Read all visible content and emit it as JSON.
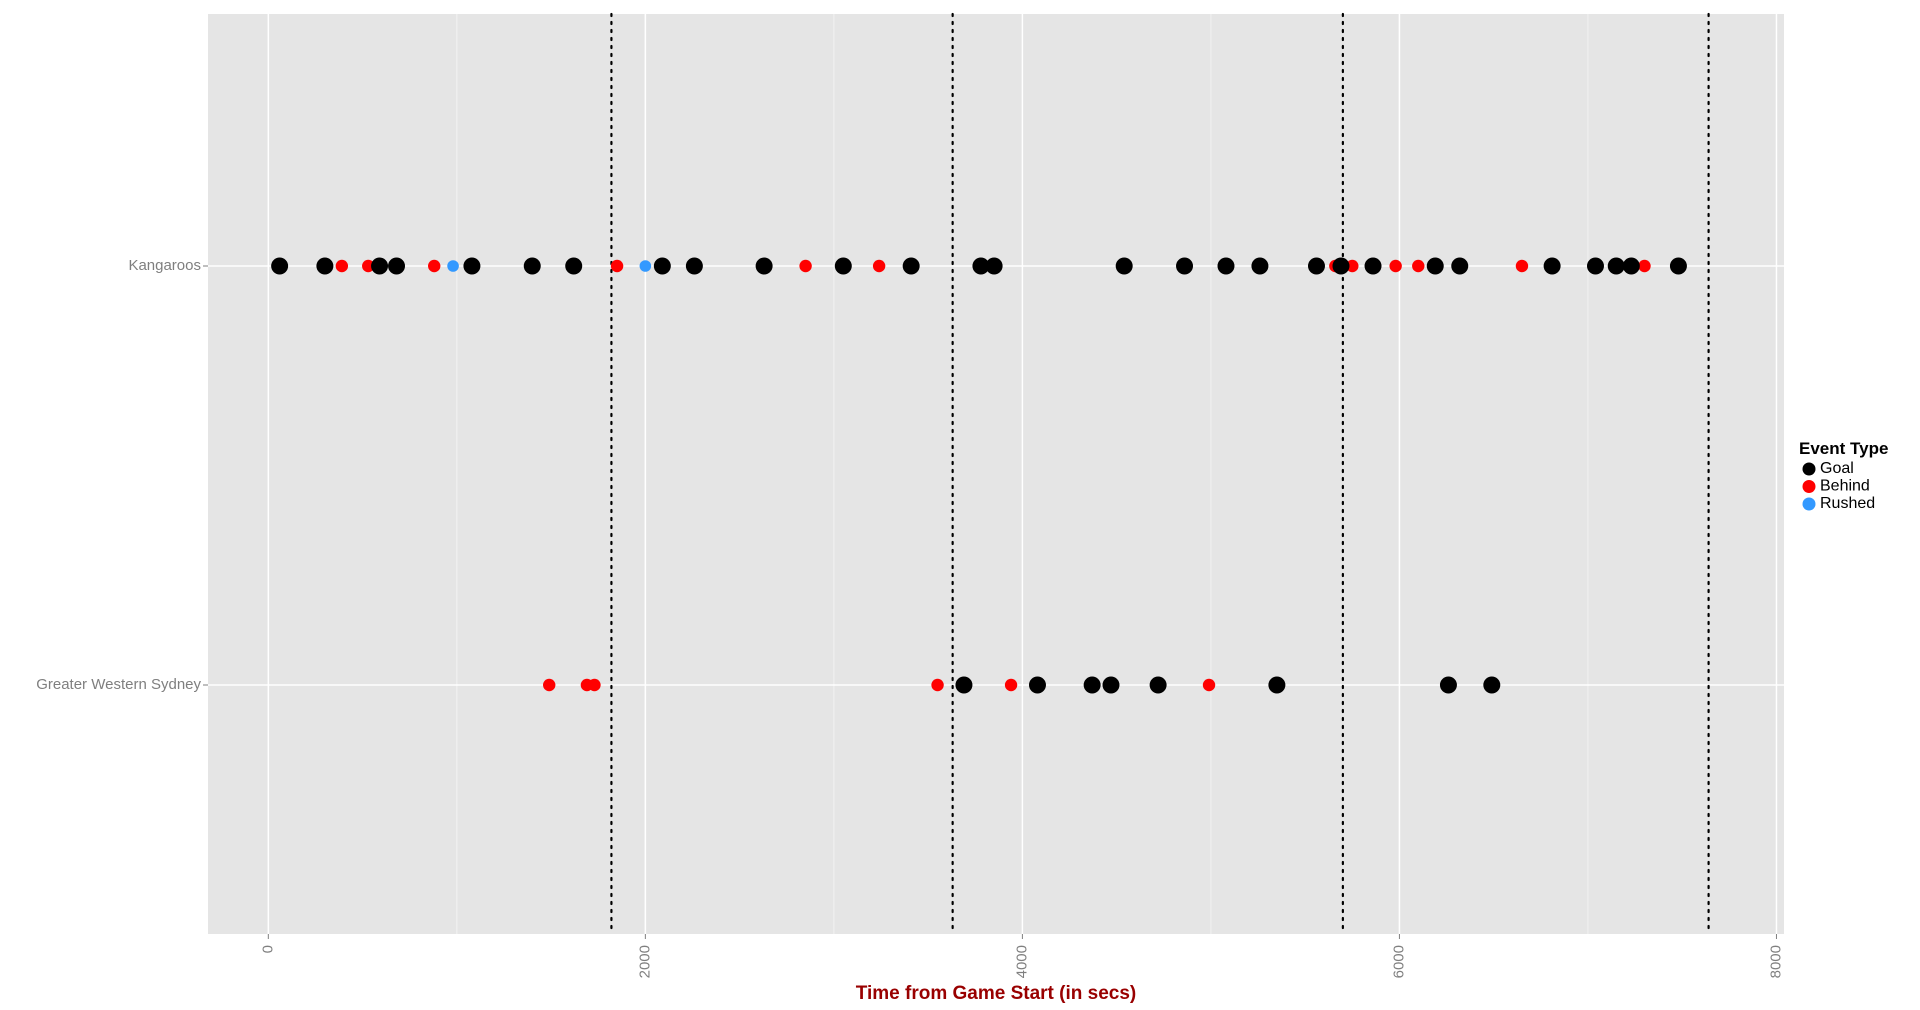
{
  "chart_data": {
    "type": "scatter",
    "title": "",
    "xlabel": "Time from Game Start (in secs)",
    "ylabel": "",
    "xlim": [
      -320,
      8040
    ],
    "x_ticks": [
      0,
      2000,
      4000,
      6000,
      8000
    ],
    "categories": [
      "Kangaroos",
      "Greater Western Sydney"
    ],
    "grid": true,
    "legend": {
      "title": "Event Type",
      "position": "right"
    },
    "quarter_lines": [
      1820,
      3630,
      5700,
      7640
    ],
    "series": [
      {
        "name": "Goal",
        "color": "#000000",
        "points": [
          {
            "team": "Kangaroos",
            "x": 60
          },
          {
            "team": "Kangaroos",
            "x": 300
          },
          {
            "team": "Kangaroos",
            "x": 590
          },
          {
            "team": "Kangaroos",
            "x": 680
          },
          {
            "team": "Kangaroos",
            "x": 1080
          },
          {
            "team": "Kangaroos",
            "x": 1400
          },
          {
            "team": "Kangaroos",
            "x": 1620
          },
          {
            "team": "Kangaroos",
            "x": 2090
          },
          {
            "team": "Kangaroos",
            "x": 2260
          },
          {
            "team": "Kangaroos",
            "x": 2630
          },
          {
            "team": "Kangaroos",
            "x": 3050
          },
          {
            "team": "Kangaroos",
            "x": 3410
          },
          {
            "team": "Kangaroos",
            "x": 3780
          },
          {
            "team": "Kangaroos",
            "x": 3850
          },
          {
            "team": "Kangaroos",
            "x": 4540
          },
          {
            "team": "Kangaroos",
            "x": 4860
          },
          {
            "team": "Kangaroos",
            "x": 5080
          },
          {
            "team": "Kangaroos",
            "x": 5260
          },
          {
            "team": "Kangaroos",
            "x": 5560
          },
          {
            "team": "Kangaroos",
            "x": 5690
          },
          {
            "team": "Kangaroos",
            "x": 5860
          },
          {
            "team": "Kangaroos",
            "x": 6190
          },
          {
            "team": "Kangaroos",
            "x": 6320
          },
          {
            "team": "Kangaroos",
            "x": 6810
          },
          {
            "team": "Kangaroos",
            "x": 7040
          },
          {
            "team": "Kangaroos",
            "x": 7150
          },
          {
            "team": "Kangaroos",
            "x": 7230
          },
          {
            "team": "Kangaroos",
            "x": 7480
          },
          {
            "team": "Greater Western Sydney",
            "x": 3690
          },
          {
            "team": "Greater Western Sydney",
            "x": 4080
          },
          {
            "team": "Greater Western Sydney",
            "x": 4370
          },
          {
            "team": "Greater Western Sydney",
            "x": 4470
          },
          {
            "team": "Greater Western Sydney",
            "x": 4720
          },
          {
            "team": "Greater Western Sydney",
            "x": 5350
          },
          {
            "team": "Greater Western Sydney",
            "x": 6260
          },
          {
            "team": "Greater Western Sydney",
            "x": 6490
          }
        ]
      },
      {
        "name": "Behind",
        "color": "#ff0000",
        "points": [
          {
            "team": "Kangaroos",
            "x": 390
          },
          {
            "team": "Kangaroos",
            "x": 530
          },
          {
            "team": "Kangaroos",
            "x": 880
          },
          {
            "team": "Kangaroos",
            "x": 1850
          },
          {
            "team": "Kangaroos",
            "x": 2850
          },
          {
            "team": "Kangaroos",
            "x": 3240
          },
          {
            "team": "Kangaroos",
            "x": 5660
          },
          {
            "team": "Kangaroos",
            "x": 5750
          },
          {
            "team": "Kangaroos",
            "x": 5980
          },
          {
            "team": "Kangaroos",
            "x": 6100
          },
          {
            "team": "Kangaroos",
            "x": 6650
          },
          {
            "team": "Kangaroos",
            "x": 7300
          },
          {
            "team": "Greater Western Sydney",
            "x": 1490
          },
          {
            "team": "Greater Western Sydney",
            "x": 1690
          },
          {
            "team": "Greater Western Sydney",
            "x": 1730
          },
          {
            "team": "Greater Western Sydney",
            "x": 3550
          },
          {
            "team": "Greater Western Sydney",
            "x": 3940
          },
          {
            "team": "Greater Western Sydney",
            "x": 4990
          }
        ]
      },
      {
        "name": "Rushed",
        "color": "#3399ff",
        "points": [
          {
            "team": "Kangaroos",
            "x": 980
          },
          {
            "team": "Kangaroos",
            "x": 2000
          }
        ]
      }
    ]
  }
}
